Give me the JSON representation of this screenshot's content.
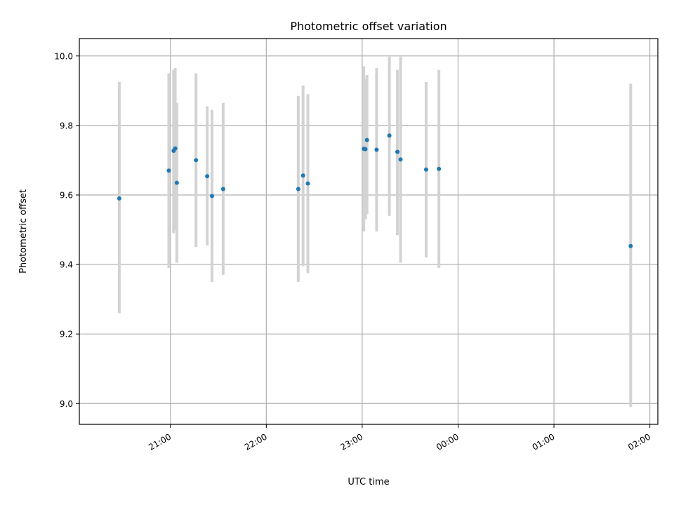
{
  "chart_data": {
    "type": "scatter",
    "title": "Photometric offset variation",
    "xlabel": "UTC time",
    "ylabel": "Photometric offset",
    "x_axis": {
      "kind": "time",
      "start": "2000-01-01T20:03:00",
      "end": "2000-01-02T02:05:00",
      "tick_values": [
        "2000-01-01T21:00",
        "2000-01-01T22:00",
        "2000-01-01T23:00",
        "2000-01-02T00:00",
        "2000-01-02T01:00",
        "2000-01-02T02:00"
      ],
      "tick_labels": [
        "21:00",
        "22:00",
        "23:00",
        "00:00",
        "01:00",
        "02:00"
      ]
    },
    "ylim": [
      8.94,
      10.05
    ],
    "y_ticks": [
      9.0,
      9.2,
      9.4,
      9.6,
      9.8,
      10.0
    ],
    "y_tick_labels": [
      "9.0",
      "9.2",
      "9.4",
      "9.6",
      "9.8",
      "10.0"
    ],
    "grid": true,
    "colors": {
      "points": "#1f77b4",
      "errorbars": "#d3d3d3",
      "grid": "#b0b0b0"
    },
    "series": [
      {
        "points": [
          {
            "x": "2000-01-01T20:28",
            "y": 9.59,
            "y_err_low": 9.26,
            "y_err_high": 9.925
          },
          {
            "x": "2000-01-01T20:59",
            "y": 9.67,
            "y_err_low": 9.39,
            "y_err_high": 9.95
          },
          {
            "x": "2000-01-01T21:02",
            "y": 9.727,
            "y_err_low": 9.49,
            "y_err_high": 9.96
          },
          {
            "x": "2000-01-01T21:03",
            "y": 9.734,
            "y_err_low": 9.5,
            "y_err_high": 9.965
          },
          {
            "x": "2000-01-01T21:04",
            "y": 9.635,
            "y_err_low": 9.405,
            "y_err_high": 9.865
          },
          {
            "x": "2000-01-01T21:16",
            "y": 9.7,
            "y_err_low": 9.45,
            "y_err_high": 9.95
          },
          {
            "x": "2000-01-01T21:23",
            "y": 9.654,
            "y_err_low": 9.455,
            "y_err_high": 9.855
          },
          {
            "x": "2000-01-01T21:26",
            "y": 9.597,
            "y_err_low": 9.35,
            "y_err_high": 9.845
          },
          {
            "x": "2000-01-01T21:33",
            "y": 9.617,
            "y_err_low": 9.37,
            "y_err_high": 9.865
          },
          {
            "x": "2000-01-01T22:20",
            "y": 9.617,
            "y_err_low": 9.35,
            "y_err_high": 9.885
          },
          {
            "x": "2000-01-01T22:23",
            "y": 9.656,
            "y_err_low": 9.395,
            "y_err_high": 9.915
          },
          {
            "x": "2000-01-01T22:26",
            "y": 9.633,
            "y_err_low": 9.375,
            "y_err_high": 9.89
          },
          {
            "x": "2000-01-01T23:01",
            "y": 9.733,
            "y_err_low": 9.495,
            "y_err_high": 9.97
          },
          {
            "x": "2000-01-01T23:02",
            "y": 9.732,
            "y_err_low": 9.53,
            "y_err_high": 9.935
          },
          {
            "x": "2000-01-01T23:03",
            "y": 9.758,
            "y_err_low": 9.545,
            "y_err_high": 9.945
          },
          {
            "x": "2000-01-01T23:09",
            "y": 9.73,
            "y_err_low": 9.495,
            "y_err_high": 9.965
          },
          {
            "x": "2000-01-01T23:17",
            "y": 9.771,
            "y_err_low": 9.54,
            "y_err_high": 9.998
          },
          {
            "x": "2000-01-01T23:22",
            "y": 9.724,
            "y_err_low": 9.485,
            "y_err_high": 9.96
          },
          {
            "x": "2000-01-01T23:24",
            "y": 9.702,
            "y_err_low": 9.405,
            "y_err_high": 9.998
          },
          {
            "x": "2000-01-01T23:40",
            "y": 9.673,
            "y_err_low": 9.42,
            "y_err_high": 9.925
          },
          {
            "x": "2000-01-01T23:48",
            "y": 9.675,
            "y_err_low": 9.39,
            "y_err_high": 9.96
          },
          {
            "x": "2000-01-02T01:48",
            "y": 9.453,
            "y_err_low": 8.99,
            "y_err_high": 9.92
          }
        ]
      }
    ]
  }
}
